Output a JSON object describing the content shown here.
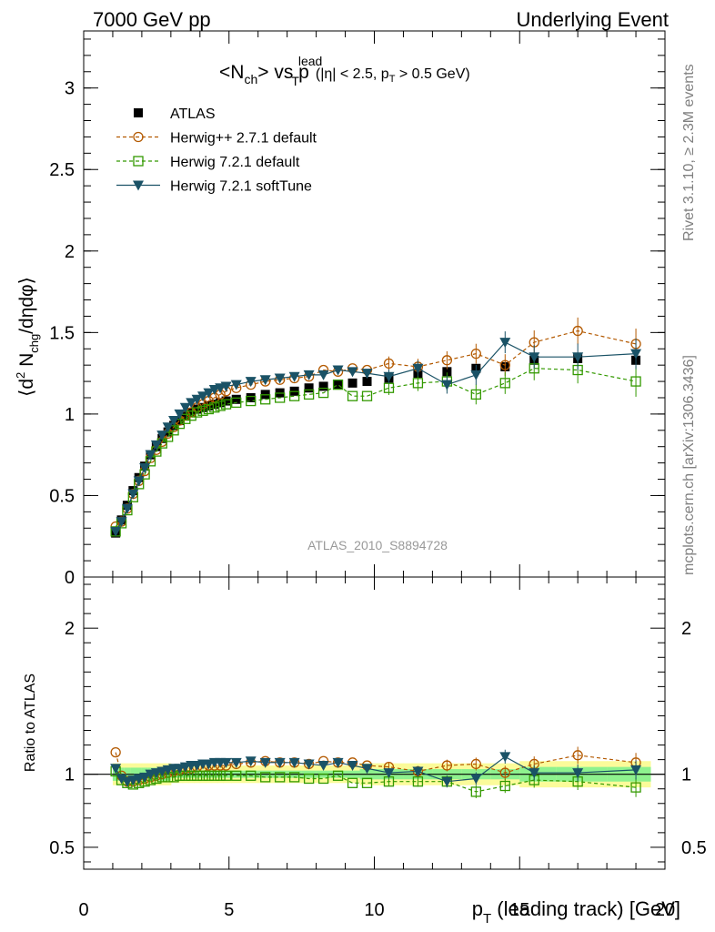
{
  "header": {
    "left": "7000 GeV pp",
    "right": "Underlying Event"
  },
  "side_labels": {
    "rivet": "Rivet 3.1.10, ≥ 2.3M events",
    "mcplots": "mcplots.cern.ch [arXiv:1306.3436]"
  },
  "title": {
    "n": "<N",
    "n_sub": "ch",
    "vs": "> vs p",
    "p_sub": "T",
    "p_sup": "lead",
    "cuts_a": "(|η| < 2.5, p",
    "cuts_sub": "T",
    "cuts_b": " > 0.5 GeV)"
  },
  "analysis_label": "ATLAS_2010_S8894728",
  "axes": {
    "x_label": "p",
    "x_label_sub": "T",
    "x_label_rest": " (leading track) [GeV]",
    "y_top_label_a": "⟨d",
    "y_top_label_sup": "2",
    "y_top_label_b": " N",
    "y_top_label_sub": "chg",
    "y_top_label_c": "/dηdφ⟩",
    "y_bottom_label": "Ratio to ATLAS"
  },
  "legend": [
    {
      "key": "atlas",
      "label": "ATLAS"
    },
    {
      "key": "h27",
      "label": "Herwig++ 2.7.1 default"
    },
    {
      "key": "h72",
      "label": "Herwig 7.2.1 default"
    },
    {
      "key": "soft",
      "label": "Herwig 7.2.1 softTune"
    }
  ],
  "colors": {
    "atlas": "#000000",
    "h27": "#b35900",
    "h72": "#339900",
    "soft": "#1a5266",
    "band_inner": "#8ef28e",
    "band_outer": "#fbfb9a"
  },
  "chart_data": [
    {
      "type": "scatter",
      "panel": "main",
      "xlim": [
        0,
        20
      ],
      "ylim": [
        0,
        3.35
      ],
      "x_ticks": [
        0,
        5,
        10,
        15,
        20
      ],
      "y_ticks": [
        0.5,
        1,
        1.5,
        2,
        2.5,
        3
      ],
      "y_tick_labels": [
        "0.5",
        "1",
        "1.5",
        "2",
        "2.5",
        "3"
      ],
      "x": [
        1.1,
        1.3,
        1.5,
        1.7,
        1.9,
        2.1,
        2.3,
        2.5,
        2.7,
        2.9,
        3.1,
        3.3,
        3.5,
        3.7,
        3.9,
        4.1,
        4.3,
        4.5,
        4.7,
        4.9,
        5.25,
        5.75,
        6.25,
        6.75,
        7.25,
        7.75,
        8.25,
        8.75,
        9.25,
        9.75,
        10.5,
        11.5,
        12.5,
        13.5,
        14.5,
        15.5,
        17.0,
        19.0
      ],
      "series": [
        {
          "name": "ATLAS",
          "values": [
            0.27,
            0.35,
            0.44,
            0.53,
            0.61,
            0.68,
            0.75,
            0.8,
            0.85,
            0.89,
            0.93,
            0.96,
            0.99,
            1.01,
            1.03,
            1.04,
            1.05,
            1.06,
            1.07,
            1.08,
            1.09,
            1.1,
            1.12,
            1.13,
            1.14,
            1.16,
            1.17,
            1.18,
            1.19,
            1.2,
            1.22,
            1.25,
            1.26,
            1.28,
            1.29,
            1.33,
            1.34,
            1.33
          ]
        },
        {
          "name": "Herwig++ 2.7.1 default",
          "values": [
            0.31,
            0.34,
            0.42,
            0.51,
            0.59,
            0.65,
            0.73,
            0.78,
            0.83,
            0.88,
            0.92,
            0.96,
            0.99,
            1.01,
            1.04,
            1.06,
            1.08,
            1.1,
            1.12,
            1.14,
            1.16,
            1.18,
            1.2,
            1.21,
            1.22,
            1.23,
            1.27,
            1.26,
            1.28,
            1.27,
            1.31,
            1.29,
            1.33,
            1.37,
            1.3,
            1.44,
            1.51,
            1.43
          ]
        },
        {
          "name": "Herwig 7.2.1 default",
          "values": [
            0.28,
            0.33,
            0.41,
            0.49,
            0.57,
            0.63,
            0.71,
            0.77,
            0.82,
            0.86,
            0.9,
            0.94,
            0.97,
            0.99,
            1.01,
            1.02,
            1.03,
            1.04,
            1.05,
            1.06,
            1.07,
            1.08,
            1.09,
            1.1,
            1.11,
            1.12,
            1.13,
            1.18,
            1.11,
            1.11,
            1.16,
            1.19,
            1.2,
            1.12,
            1.19,
            1.28,
            1.27,
            1.2
          ]
        },
        {
          "name": "Herwig 7.2.1 softTune",
          "values": [
            0.28,
            0.34,
            0.42,
            0.51,
            0.59,
            0.67,
            0.75,
            0.81,
            0.87,
            0.92,
            0.96,
            1.0,
            1.04,
            1.07,
            1.09,
            1.11,
            1.13,
            1.15,
            1.16,
            1.17,
            1.18,
            1.2,
            1.21,
            1.22,
            1.23,
            1.24,
            1.24,
            1.27,
            1.26,
            1.25,
            1.23,
            1.28,
            1.18,
            1.24,
            1.44,
            1.35,
            1.35,
            1.37
          ]
        }
      ]
    },
    {
      "type": "scatter",
      "panel": "ratio",
      "xlim": [
        0,
        20
      ],
      "ylim": [
        0.35,
        2.35
      ],
      "x_ticks": [
        0,
        5,
        10,
        15,
        20
      ],
      "x_tick_labels": [
        "0",
        "5",
        "10",
        "15",
        "20"
      ],
      "y_ticks": [
        0.5,
        1,
        2
      ],
      "y_tick_labels": [
        "0.5",
        "1",
        "2"
      ],
      "x": [
        1.1,
        1.3,
        1.5,
        1.7,
        1.9,
        2.1,
        2.3,
        2.5,
        2.7,
        2.9,
        3.1,
        3.3,
        3.5,
        3.7,
        3.9,
        4.1,
        4.3,
        4.5,
        4.7,
        4.9,
        5.25,
        5.75,
        6.25,
        6.75,
        7.25,
        7.75,
        8.25,
        8.75,
        9.25,
        9.75,
        10.5,
        11.5,
        12.5,
        13.5,
        14.5,
        15.5,
        17.0,
        19.0
      ],
      "series": [
        {
          "name": "Herwig++ 2.7.1 default",
          "values": [
            1.15,
            0.99,
            0.95,
            0.95,
            0.96,
            0.97,
            0.98,
            0.99,
            1.0,
            1.01,
            1.02,
            1.03,
            1.04,
            1.04,
            1.05,
            1.05,
            1.06,
            1.06,
            1.06,
            1.06,
            1.07,
            1.08,
            1.09,
            1.08,
            1.08,
            1.07,
            1.09,
            1.08,
            1.08,
            1.06,
            1.05,
            1.02,
            1.06,
            1.07,
            1.01,
            1.07,
            1.13,
            1.08
          ]
        },
        {
          "name": "Herwig 7.2.1 default",
          "values": [
            1.02,
            0.96,
            0.94,
            0.93,
            0.94,
            0.95,
            0.96,
            0.97,
            0.98,
            0.98,
            0.98,
            0.99,
            0.99,
            0.99,
            0.99,
            0.99,
            0.99,
            0.99,
            0.99,
            0.99,
            0.99,
            0.99,
            0.98,
            0.98,
            0.98,
            0.97,
            0.97,
            0.99,
            0.94,
            0.94,
            0.95,
            0.95,
            0.95,
            0.88,
            0.92,
            0.96,
            0.95,
            0.91
          ]
        },
        {
          "name": "Herwig 7.2.1 softTune",
          "values": [
            1.04,
            0.97,
            0.95,
            0.96,
            0.97,
            0.98,
            1.0,
            1.01,
            1.02,
            1.03,
            1.04,
            1.04,
            1.05,
            1.06,
            1.06,
            1.07,
            1.07,
            1.08,
            1.08,
            1.08,
            1.08,
            1.09,
            1.08,
            1.08,
            1.08,
            1.07,
            1.06,
            1.08,
            1.06,
            1.04,
            1.01,
            1.02,
            0.95,
            0.97,
            1.12,
            1.01,
            1.01,
            1.03
          ]
        }
      ]
    }
  ]
}
